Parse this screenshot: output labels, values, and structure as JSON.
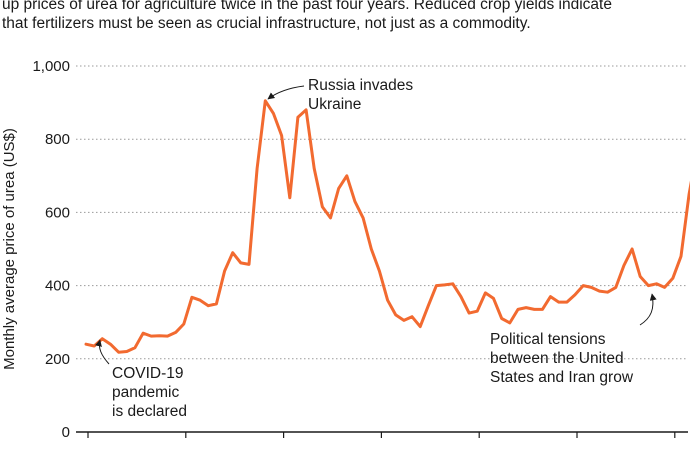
{
  "caption": {
    "line1": "up prices of urea for agriculture twice in the past four years. Reduced crop yields indicate",
    "line2": "that fertilizers must be seen as crucial infrastructure, not just as a commodity."
  },
  "chart_data": {
    "type": "line",
    "title": "",
    "xlabel": "",
    "ylabel": "Monthly average price of urea (US$)",
    "ylim": [
      0,
      1000
    ],
    "yticks": [
      0,
      200,
      400,
      600,
      800,
      1000
    ],
    "ytick_labels": [
      "0",
      "200",
      "400",
      "600",
      "800",
      "1,000"
    ],
    "grid": true,
    "series": [
      {
        "name": "",
        "color": "#f26a30",
        "values": [
          240,
          235,
          255,
          240,
          218,
          220,
          230,
          270,
          262,
          263,
          262,
          272,
          295,
          368,
          360,
          345,
          350,
          440,
          490,
          462,
          458,
          720,
          905,
          870,
          810,
          640,
          860,
          880,
          720,
          615,
          585,
          665,
          700,
          630,
          585,
          500,
          440,
          360,
          320,
          305,
          315,
          288,
          345,
          400,
          402,
          405,
          370,
          325,
          330,
          380,
          365,
          310,
          298,
          335,
          340,
          335,
          335,
          370,
          355,
          355,
          375,
          400,
          395,
          385,
          382,
          395,
          455,
          500,
          425,
          400,
          405,
          395,
          420,
          480,
          650,
          775
        ]
      }
    ],
    "annotations": [
      {
        "name": "covid",
        "lines": [
          "COVID-19",
          "pandemic",
          "is declared"
        ]
      },
      {
        "name": "russia",
        "lines": [
          "Russia invades",
          "Ukraine"
        ]
      },
      {
        "name": "us-iran",
        "lines": [
          "Political tensions",
          "between the United",
          "States and Iran grow"
        ]
      }
    ]
  }
}
